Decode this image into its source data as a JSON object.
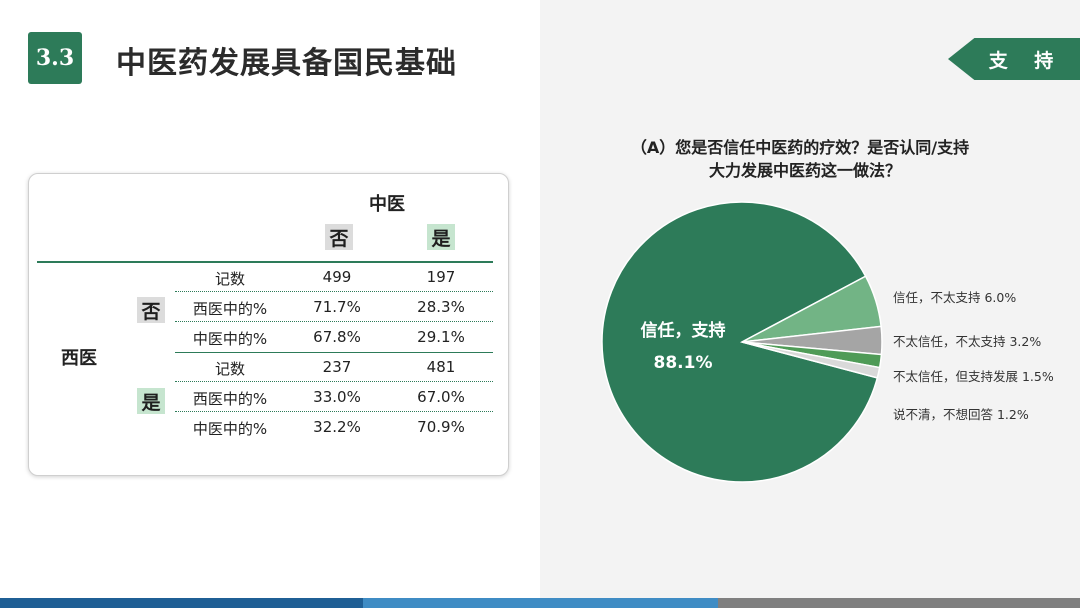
{
  "header": {
    "section_number": "3.3",
    "title": "中医药发展具备国民基础",
    "tag": "支 持"
  },
  "table": {
    "col_group_label": "中医",
    "col_no": "否",
    "col_yes": "是",
    "row_group_label": "西医",
    "row_groups": [
      {
        "label": "否",
        "rows": [
          {
            "stat": "记数",
            "no": "499",
            "yes": "197"
          },
          {
            "stat": "西医中的%",
            "no": "71.7%",
            "yes": "28.3%"
          },
          {
            "stat": "中医中的%",
            "no": "67.8%",
            "yes": "29.1%"
          }
        ]
      },
      {
        "label": "是",
        "rows": [
          {
            "stat": "记数",
            "no": "237",
            "yes": "481"
          },
          {
            "stat": "西医中的%",
            "no": "33.0%",
            "yes": "67.0%"
          },
          {
            "stat": "中医中的%",
            "no": "32.2%",
            "yes": "70.9%"
          }
        ]
      }
    ]
  },
  "chart_data": {
    "type": "pie",
    "title_line1": "（A）您是否信任中医药的疗效？是否认同/支持",
    "title_line2": "大力发展中医药这一做法？",
    "slices": [
      {
        "label": "信任，支持",
        "value": 88.1,
        "value_label": "88.1%",
        "color": "#2d7b59"
      },
      {
        "label": "信任，不太支持",
        "value": 6.0,
        "value_label": "6.0%",
        "color": "#72b485"
      },
      {
        "label": "不太信任，不太支持",
        "value": 3.2,
        "value_label": "3.2%",
        "color": "#a5a5a5"
      },
      {
        "label": "不太信任，但支持发展",
        "value": 1.5,
        "value_label": "1.5%",
        "color": "#4f9b57"
      },
      {
        "label": "说不清，不想回答",
        "value": 1.2,
        "value_label": "1.2%",
        "color": "#d9d9d9"
      }
    ]
  },
  "colors": {
    "accent": "#2d7b59",
    "bar_blue": "#1f5f95",
    "bar_light_blue": "#3f8cc4",
    "bar_gray": "#7f7f7f"
  }
}
